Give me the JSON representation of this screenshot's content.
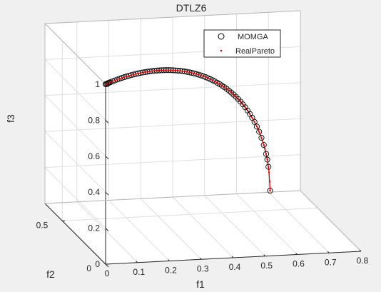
{
  "chart_data": {
    "type": "scatter",
    "title": "DTLZ6",
    "xlabel": "f1",
    "ylabel": "f2",
    "zlabel": "f3",
    "xlim": [
      0,
      0.8
    ],
    "ylim": [
      0,
      0.7
    ],
    "zlim": [
      0,
      1
    ],
    "x_ticks": [
      "0",
      "0.1",
      "0.2",
      "0.3",
      "0.4",
      "0.5",
      "0.6",
      "0.7",
      "0.8"
    ],
    "y_ticks": [
      "0",
      "0.5"
    ],
    "z_ticks": [
      "0",
      "0.2",
      "0.4",
      "0.6",
      "0.8",
      "1"
    ],
    "grid": true,
    "legend_position": "top-right",
    "curve": {
      "description_of_front": "f1 = f2 = t, f3 = sqrt(1 - 2 t^2)",
      "t_range": [
        0,
        0.7071
      ]
    },
    "series": [
      {
        "name": "MOMGA",
        "marker": "circle",
        "color": "#000000",
        "t_values": [
          0.0,
          0.004,
          0.008,
          0.012,
          0.016,
          0.02,
          0.03,
          0.04,
          0.05,
          0.06,
          0.07,
          0.08,
          0.09,
          0.1,
          0.11,
          0.12,
          0.13,
          0.14,
          0.15,
          0.16,
          0.17,
          0.18,
          0.19,
          0.2,
          0.21,
          0.22,
          0.23,
          0.24,
          0.25,
          0.26,
          0.27,
          0.28,
          0.29,
          0.3,
          0.31,
          0.32,
          0.33,
          0.34,
          0.35,
          0.36,
          0.37,
          0.38,
          0.39,
          0.4,
          0.41,
          0.42,
          0.43,
          0.44,
          0.45,
          0.46,
          0.47,
          0.48,
          0.49,
          0.5,
          0.51,
          0.52,
          0.53,
          0.54,
          0.55,
          0.56,
          0.57,
          0.58,
          0.59,
          0.6,
          0.61,
          0.62,
          0.63,
          0.64,
          0.65,
          0.66,
          0.67,
          0.68,
          0.69,
          0.695,
          0.7,
          0.7071
        ]
      },
      {
        "name": "RealPareto",
        "marker": "point",
        "color": "#e00000",
        "t_values": [
          0.0,
          0.01,
          0.02,
          0.03,
          0.04,
          0.05,
          0.06,
          0.07,
          0.08,
          0.09,
          0.1,
          0.11,
          0.12,
          0.13,
          0.14,
          0.15,
          0.16,
          0.17,
          0.18,
          0.19,
          0.2,
          0.21,
          0.22,
          0.23,
          0.24,
          0.25,
          0.26,
          0.27,
          0.28,
          0.29,
          0.3,
          0.31,
          0.32,
          0.33,
          0.34,
          0.35,
          0.36,
          0.37,
          0.38,
          0.39,
          0.4,
          0.41,
          0.42,
          0.43,
          0.44,
          0.45,
          0.46,
          0.47,
          0.48,
          0.49,
          0.5,
          0.51,
          0.52,
          0.53,
          0.54,
          0.55,
          0.56,
          0.57,
          0.58,
          0.59,
          0.6,
          0.61,
          0.62,
          0.63,
          0.64,
          0.65,
          0.66,
          0.67,
          0.68,
          0.685,
          0.69,
          0.695,
          0.7,
          0.703,
          0.706,
          0.7071
        ]
      }
    ]
  }
}
